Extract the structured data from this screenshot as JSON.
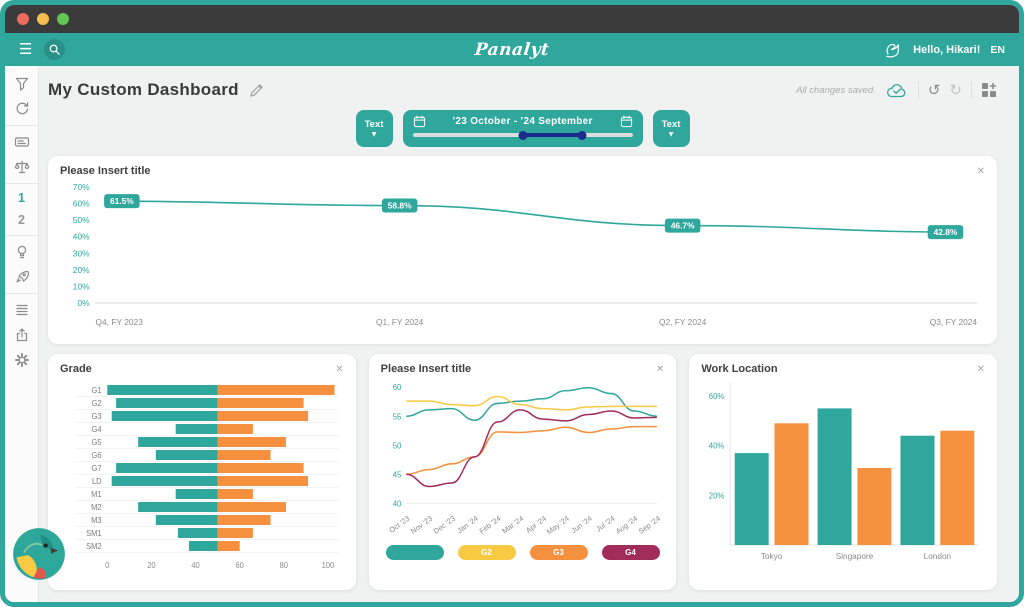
{
  "header": {
    "logo": "Panalyt",
    "greeting": "Hello, Hikari!",
    "language": "EN"
  },
  "icons": {
    "hamburger": "☰",
    "chevron_down": "▼",
    "close": "✕",
    "undo": "↺",
    "redo": "↻"
  },
  "sidebar": {
    "page1": "1",
    "page2": "2",
    "icon_names": [
      "filter-icon",
      "reset-icon",
      "boards-icon",
      "scales-icon",
      "lightbulb-icon",
      "rocket-icon",
      "list-icon",
      "share-icon",
      "settings-gear-icon"
    ]
  },
  "page": {
    "title": "My Custom Dashboard",
    "save_status": "All changes saved."
  },
  "toolbar": {
    "left_button": "Text",
    "right_button": "Text",
    "date_range": "’23 October  -  ’24 September",
    "slider": {
      "start_pct": 50,
      "end_pct": 77
    }
  },
  "colors": {
    "teal": "#2FA79C",
    "orange": "#F5913E",
    "yellow": "#F8CA44",
    "maroon": "#A12B5B",
    "navy": "#1B2C8A"
  },
  "chart_data": [
    {
      "type": "line",
      "title": "Please Insert title",
      "x_labels": [
        "Q4, FY 2023",
        "Q1, FY 2024",
        "Q2, FY 2024",
        "Q3, FY 2024"
      ],
      "values": [
        61.5,
        58.8,
        46.7,
        42.8
      ],
      "point_labels": [
        "61.5%",
        "58.8%",
        "46.7%",
        "42.8%"
      ],
      "y_ticks": [
        "70%",
        "60%",
        "50%",
        "40%",
        "30%",
        "20%",
        "10%",
        "0%"
      ],
      "ylim": [
        0,
        70
      ],
      "color": "#2FA79C",
      "grid": "baseline-only",
      "legend_position": "none"
    },
    {
      "type": "bar",
      "orientation": "horizontal-diverging",
      "title": "Grade",
      "categories": [
        "G1",
        "G2",
        "G3",
        "G4",
        "G5",
        "G6",
        "G7",
        "LD",
        "M1",
        "M2",
        "M3",
        "SM1",
        "SM2"
      ],
      "center": 50,
      "series": [
        {
          "name": "left-of-center",
          "color": "#2FA79C",
          "left_starts": [
            0,
            4,
            2,
            31,
            14,
            22,
            4,
            2,
            31,
            14,
            22,
            32,
            37
          ]
        },
        {
          "name": "right-of-center",
          "color": "#F5913E",
          "right_ends": [
            103,
            89,
            91,
            66,
            81,
            74,
            89,
            91,
            66,
            81,
            74,
            66,
            60
          ]
        }
      ],
      "x_ticks": [
        0,
        20,
        40,
        60,
        80,
        100
      ],
      "xlim": [
        0,
        105
      ]
    },
    {
      "type": "line",
      "title": "Please Insert title",
      "x_labels": [
        "Oct '23",
        "Nov '23",
        "Dec '23",
        "Jan '24",
        "Feb '24",
        "Mar '24",
        "Apr '24",
        "May '24",
        "Jun '24",
        "Jul '24",
        "Aug '24",
        "Sep '24"
      ],
      "y_ticks": [
        40,
        45,
        50,
        55,
        60
      ],
      "ylim": [
        40,
        60
      ],
      "series": [
        {
          "name": "",
          "color": "#2FA79C",
          "values": [
            55,
            56.1,
            56.3,
            54.3,
            57.2,
            57.6,
            58,
            59.4,
            59.9,
            58.9,
            55.9,
            55
          ]
        },
        {
          "name": "G2",
          "color": "#F8CA44",
          "values": [
            57.6,
            57.6,
            57,
            56.8,
            58.4,
            57,
            56.3,
            56.1,
            56.6,
            56.7,
            56.7,
            56.7
          ]
        },
        {
          "name": "G3",
          "color": "#F5913E",
          "values": [
            45,
            45.8,
            46.8,
            48,
            52.3,
            52.2,
            52.5,
            53.1,
            52.2,
            52.8,
            53.2,
            53.2
          ]
        },
        {
          "name": "G4",
          "color": "#A12B5B",
          "values": [
            45,
            42.9,
            43.5,
            48,
            54,
            56.1,
            54.5,
            54.2,
            55.3,
            55.9,
            54.7,
            54.8
          ]
        }
      ],
      "legend": [
        {
          "label": "",
          "color": "#2FA79C"
        },
        {
          "label": "G2",
          "color": "#F8CA44"
        },
        {
          "label": "G3",
          "color": "#F5913E"
        },
        {
          "label": "G4",
          "color": "#A12B5B"
        }
      ],
      "legend_position": "bottom"
    },
    {
      "type": "bar",
      "title": "Work Location",
      "categories": [
        "Tokyo",
        "Singapore",
        "London"
      ],
      "series": [
        {
          "name": "teal",
          "color": "#2FA79C",
          "values": [
            37,
            55,
            44
          ]
        },
        {
          "name": "orange",
          "color": "#F5913E",
          "values": [
            49,
            31,
            46
          ]
        }
      ],
      "y_ticks": [
        "20%",
        "40%",
        "60%"
      ],
      "ylim": [
        0,
        62
      ],
      "grid": "axes-only"
    }
  ]
}
